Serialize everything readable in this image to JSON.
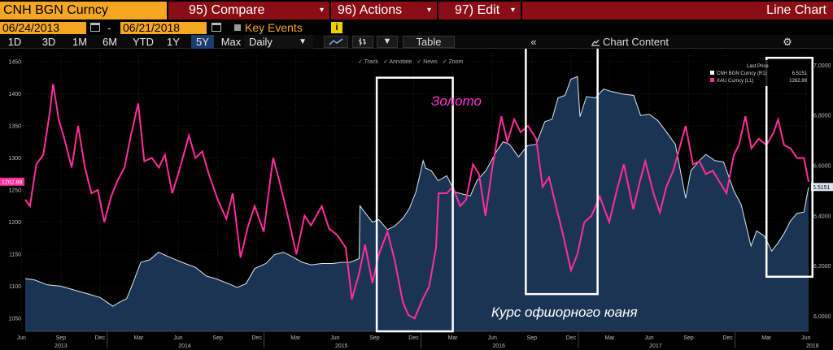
{
  "toolbar": {
    "ticker": "CNH BGN Curncy",
    "compare": "95) Compare",
    "actions": "96) Actions",
    "edit": "97) Edit",
    "chart_type": "Line Chart"
  },
  "date_range": {
    "start": "06/24/2013",
    "dash": "-",
    "end": "06/21/2018",
    "key_events": "Key Events",
    "info": "i"
  },
  "periods": [
    "1D",
    "3D",
    "1M",
    "6M",
    "YTD",
    "1Y",
    "5Y",
    "Max"
  ],
  "active_period": "5Y",
  "frequency": "Daily",
  "table_label": "Table",
  "collapse_label": "«",
  "chart_content_label": "Chart Content",
  "subtools": [
    "Track",
    "Annotate",
    "News",
    "Zoom"
  ],
  "colors": {
    "toolbar_accent": "#f5a623",
    "menu_bar": "#8b0d16",
    "gold_series": "#ff2e9a",
    "yuan_fill": "#1c3454",
    "yuan_line": "#dde6f0"
  },
  "chart_data": {
    "type": "line",
    "xlabel": "",
    "ylabel": "",
    "x_range": [
      "2013-06-24",
      "2018-06-21"
    ],
    "left_axis": {
      "ticks": [
        1050,
        1100,
        1150,
        1200,
        1250,
        1300,
        1350,
        1400,
        1450
      ],
      "range": [
        1030,
        1460
      ]
    },
    "right_axis": {
      "ticks": [
        "6,0000",
        "6,2000",
        "6,4000",
        "6,6000",
        "6,8000",
        "7,0000"
      ],
      "range": [
        5.94,
        7.04
      ]
    },
    "x_months": [
      "Jun",
      "Sep",
      "Dec",
      "Mar",
      "Jun",
      "Sep",
      "Dec",
      "Mar",
      "Jun",
      "Sep",
      "Dec",
      "Mar",
      "Jun",
      "Sep",
      "Dec",
      "Mar",
      "Jun",
      "Sep",
      "Dec",
      "Mar",
      "Jun"
    ],
    "x_years": [
      "2013",
      "2014",
      "2015",
      "2016",
      "2017",
      "2018"
    ],
    "legend": {
      "header": "Last Price",
      "entries": [
        {
          "name": "CNH BGN Curncy  (R1)",
          "value": "6.5151",
          "color": "#ffffff"
        },
        {
          "name": "XAU Curncy  (L1)",
          "value": "1262.89",
          "color": "#ff2e9a"
        }
      ]
    },
    "last_labels": {
      "left": "1262.89",
      "right": "6.5151"
    },
    "annotations": [
      {
        "text": "Золото",
        "color": "#ff33cc"
      },
      {
        "text": "Курс офшорного юаня",
        "color": "#ffffff"
      }
    ],
    "series": [
      {
        "name": "XAU Curncy (L1)",
        "axis": "left",
        "points": [
          [
            "2013-06-24",
            1235
          ],
          [
            "2013-07-05",
            1225
          ],
          [
            "2013-07-20",
            1290
          ],
          [
            "2013-08-05",
            1305
          ],
          [
            "2013-08-20",
            1370
          ],
          [
            "2013-08-28",
            1415
          ],
          [
            "2013-09-10",
            1360
          ],
          [
            "2013-09-25",
            1325
          ],
          [
            "2013-10-10",
            1285
          ],
          [
            "2013-10-25",
            1350
          ],
          [
            "2013-11-10",
            1285
          ],
          [
            "2013-11-25",
            1245
          ],
          [
            "2013-12-10",
            1250
          ],
          [
            "2013-12-25",
            1200
          ],
          [
            "2014-01-10",
            1240
          ],
          [
            "2014-01-25",
            1265
          ],
          [
            "2014-02-10",
            1285
          ],
          [
            "2014-02-25",
            1335
          ],
          [
            "2014-03-14",
            1385
          ],
          [
            "2014-03-28",
            1295
          ],
          [
            "2014-04-15",
            1300
          ],
          [
            "2014-05-01",
            1285
          ],
          [
            "2014-05-15",
            1305
          ],
          [
            "2014-06-01",
            1245
          ],
          [
            "2014-06-15",
            1275
          ],
          [
            "2014-07-10",
            1335
          ],
          [
            "2014-07-25",
            1300
          ],
          [
            "2014-08-10",
            1310
          ],
          [
            "2014-08-25",
            1275
          ],
          [
            "2014-09-15",
            1235
          ],
          [
            "2014-10-05",
            1205
          ],
          [
            "2014-10-20",
            1245
          ],
          [
            "2014-11-07",
            1145
          ],
          [
            "2014-11-25",
            1195
          ],
          [
            "2014-12-10",
            1225
          ],
          [
            "2014-12-31",
            1185
          ],
          [
            "2015-01-15",
            1265
          ],
          [
            "2015-01-22",
            1300
          ],
          [
            "2015-02-05",
            1265
          ],
          [
            "2015-02-25",
            1210
          ],
          [
            "2015-03-17",
            1150
          ],
          [
            "2015-04-05",
            1210
          ],
          [
            "2015-04-20",
            1195
          ],
          [
            "2015-05-15",
            1225
          ],
          [
            "2015-06-01",
            1190
          ],
          [
            "2015-06-20",
            1180
          ],
          [
            "2015-07-10",
            1160
          ],
          [
            "2015-07-24",
            1080
          ],
          [
            "2015-08-10",
            1120
          ],
          [
            "2015-08-24",
            1165
          ],
          [
            "2015-09-10",
            1105
          ],
          [
            "2015-09-25",
            1150
          ],
          [
            "2015-10-15",
            1185
          ],
          [
            "2015-11-01",
            1140
          ],
          [
            "2015-11-20",
            1075
          ],
          [
            "2015-12-03",
            1055
          ],
          [
            "2015-12-17",
            1050
          ],
          [
            "2016-01-05",
            1080
          ],
          [
            "2016-01-20",
            1100
          ],
          [
            "2016-02-05",
            1160
          ],
          [
            "2016-02-11",
            1245
          ],
          [
            "2016-03-01",
            1245
          ],
          [
            "2016-03-15",
            1255
          ],
          [
            "2016-04-01",
            1225
          ],
          [
            "2016-04-15",
            1235
          ],
          [
            "2016-05-01",
            1290
          ],
          [
            "2016-05-15",
            1275
          ],
          [
            "2016-05-30",
            1210
          ],
          [
            "2016-06-15",
            1285
          ],
          [
            "2016-07-06",
            1365
          ],
          [
            "2016-07-20",
            1325
          ],
          [
            "2016-08-05",
            1360
          ],
          [
            "2016-08-20",
            1340
          ],
          [
            "2016-09-06",
            1350
          ],
          [
            "2016-09-25",
            1330
          ],
          [
            "2016-10-10",
            1255
          ],
          [
            "2016-10-25",
            1270
          ],
          [
            "2016-11-10",
            1225
          ],
          [
            "2016-11-25",
            1185
          ],
          [
            "2016-12-15",
            1125
          ],
          [
            "2016-12-30",
            1150
          ],
          [
            "2017-01-15",
            1200
          ],
          [
            "2017-02-01",
            1210
          ],
          [
            "2017-02-20",
            1240
          ],
          [
            "2017-03-14",
            1200
          ],
          [
            "2017-04-01",
            1250
          ],
          [
            "2017-04-17",
            1290
          ],
          [
            "2017-05-09",
            1220
          ],
          [
            "2017-05-25",
            1265
          ],
          [
            "2017-06-06",
            1295
          ],
          [
            "2017-06-25",
            1245
          ],
          [
            "2017-07-10",
            1215
          ],
          [
            "2017-07-25",
            1255
          ],
          [
            "2017-08-10",
            1280
          ],
          [
            "2017-09-08",
            1350
          ],
          [
            "2017-09-25",
            1290
          ],
          [
            "2017-10-10",
            1295
          ],
          [
            "2017-10-25",
            1275
          ],
          [
            "2017-11-10",
            1280
          ],
          [
            "2017-12-12",
            1245
          ],
          [
            "2017-12-29",
            1305
          ],
          [
            "2018-01-10",
            1320
          ],
          [
            "2018-01-25",
            1365
          ],
          [
            "2018-02-08",
            1315
          ],
          [
            "2018-02-25",
            1330
          ],
          [
            "2018-03-15",
            1320
          ],
          [
            "2018-04-01",
            1340
          ],
          [
            "2018-04-11",
            1360
          ],
          [
            "2018-04-25",
            1320
          ],
          [
            "2018-05-10",
            1315
          ],
          [
            "2018-05-25",
            1300
          ],
          [
            "2018-06-10",
            1300
          ],
          [
            "2018-06-21",
            1263
          ]
        ]
      },
      {
        "name": "CNH BGN Curncy (R1)",
        "axis": "right",
        "points": [
          [
            "2013-06-24",
            6.15
          ],
          [
            "2013-07-15",
            6.145
          ],
          [
            "2013-08-15",
            6.125
          ],
          [
            "2013-09-15",
            6.12
          ],
          [
            "2013-10-15",
            6.105
          ],
          [
            "2013-11-15",
            6.09
          ],
          [
            "2013-12-15",
            6.075
          ],
          [
            "2014-01-14",
            6.04
          ],
          [
            "2014-01-28",
            6.055
          ],
          [
            "2014-02-15",
            6.07
          ],
          [
            "2014-03-01",
            6.13
          ],
          [
            "2014-03-20",
            6.215
          ],
          [
            "2014-04-10",
            6.225
          ],
          [
            "2014-04-30",
            6.255
          ],
          [
            "2014-05-20",
            6.24
          ],
          [
            "2014-06-10",
            6.225
          ],
          [
            "2014-07-01",
            6.21
          ],
          [
            "2014-07-25",
            6.195
          ],
          [
            "2014-08-20",
            6.16
          ],
          [
            "2014-09-10",
            6.15
          ],
          [
            "2014-10-10",
            6.13
          ],
          [
            "2014-10-30",
            6.115
          ],
          [
            "2014-11-20",
            6.13
          ],
          [
            "2014-12-10",
            6.19
          ],
          [
            "2015-01-05",
            6.21
          ],
          [
            "2015-01-25",
            6.245
          ],
          [
            "2015-02-15",
            6.255
          ],
          [
            "2015-03-10",
            6.235
          ],
          [
            "2015-03-31",
            6.215
          ],
          [
            "2015-04-20",
            6.205
          ],
          [
            "2015-05-15",
            6.21
          ],
          [
            "2015-06-10",
            6.21
          ],
          [
            "2015-07-01",
            6.215
          ],
          [
            "2015-07-20",
            6.215
          ],
          [
            "2015-08-10",
            6.23
          ],
          [
            "2015-08-12",
            6.44
          ],
          [
            "2015-08-25",
            6.41
          ],
          [
            "2015-09-10",
            6.375
          ],
          [
            "2015-09-25",
            6.385
          ],
          [
            "2015-10-15",
            6.345
          ],
          [
            "2015-11-01",
            6.36
          ],
          [
            "2015-11-20",
            6.39
          ],
          [
            "2015-12-05",
            6.43
          ],
          [
            "2015-12-20",
            6.495
          ],
          [
            "2016-01-06",
            6.62
          ],
          [
            "2016-01-12",
            6.59
          ],
          [
            "2016-01-25",
            6.58
          ],
          [
            "2016-02-10",
            6.54
          ],
          [
            "2016-03-01",
            6.56
          ],
          [
            "2016-03-20",
            6.495
          ],
          [
            "2016-04-10",
            6.485
          ],
          [
            "2016-04-25",
            6.48
          ],
          [
            "2016-05-10",
            6.54
          ],
          [
            "2016-05-31",
            6.58
          ],
          [
            "2016-06-24",
            6.655
          ],
          [
            "2016-07-10",
            6.695
          ],
          [
            "2016-07-25",
            6.685
          ],
          [
            "2016-08-15",
            6.635
          ],
          [
            "2016-09-05",
            6.68
          ],
          [
            "2016-09-25",
            6.685
          ],
          [
            "2016-10-15",
            6.775
          ],
          [
            "2016-11-01",
            6.785
          ],
          [
            "2016-11-15",
            6.87
          ],
          [
            "2016-12-01",
            6.88
          ],
          [
            "2016-12-15",
            6.945
          ],
          [
            "2016-12-30",
            6.955
          ],
          [
            "2017-01-05",
            6.795
          ],
          [
            "2017-01-20",
            6.875
          ],
          [
            "2017-02-10",
            6.87
          ],
          [
            "2017-03-01",
            6.905
          ],
          [
            "2017-03-20",
            6.895
          ],
          [
            "2017-04-15",
            6.885
          ],
          [
            "2017-05-10",
            6.88
          ],
          [
            "2017-05-26",
            6.8
          ],
          [
            "2017-06-15",
            6.805
          ],
          [
            "2017-07-05",
            6.78
          ],
          [
            "2017-07-25",
            6.735
          ],
          [
            "2017-08-15",
            6.685
          ],
          [
            "2017-09-08",
            6.47
          ],
          [
            "2017-09-20",
            6.58
          ],
          [
            "2017-10-10",
            6.62
          ],
          [
            "2017-10-25",
            6.645
          ],
          [
            "2017-11-15",
            6.62
          ],
          [
            "2017-12-05",
            6.615
          ],
          [
            "2017-12-29",
            6.5
          ],
          [
            "2018-01-15",
            6.445
          ],
          [
            "2018-02-07",
            6.28
          ],
          [
            "2018-02-20",
            6.34
          ],
          [
            "2018-03-10",
            6.32
          ],
          [
            "2018-03-27",
            6.26
          ],
          [
            "2018-04-10",
            6.29
          ],
          [
            "2018-04-25",
            6.33
          ],
          [
            "2018-05-10",
            6.38
          ],
          [
            "2018-05-25",
            6.41
          ],
          [
            "2018-06-10",
            6.415
          ],
          [
            "2018-06-21",
            6.515
          ]
        ]
      }
    ]
  }
}
